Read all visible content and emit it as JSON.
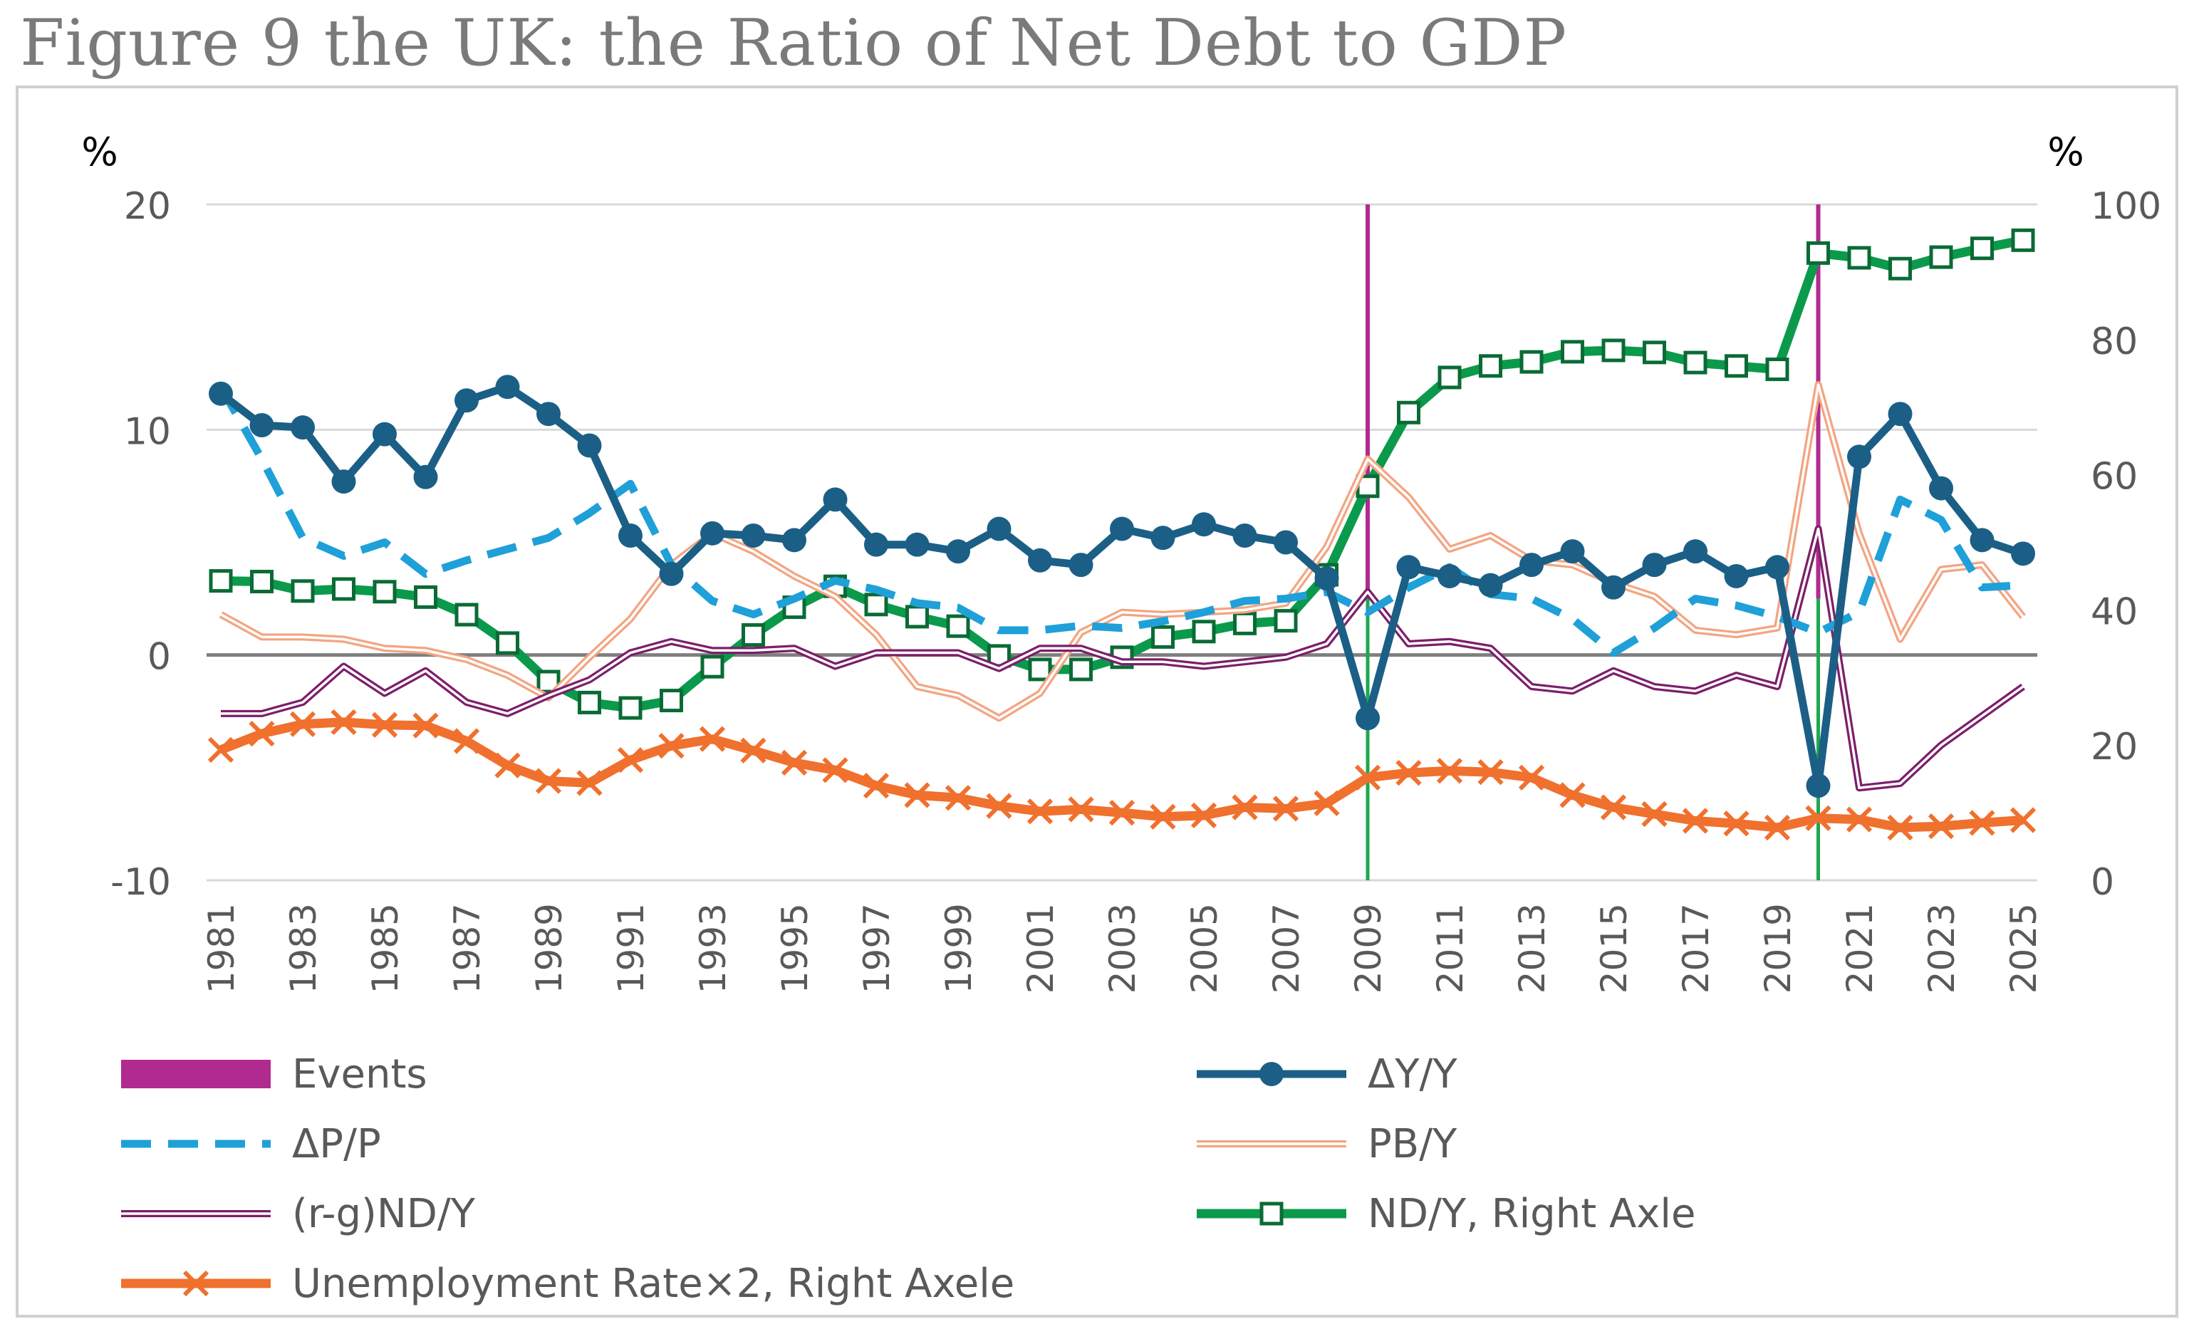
{
  "page": {
    "title": "Figure 9 the UK: the Ratio of Net Debt to GDP"
  },
  "chart_data": {
    "type": "line",
    "title": "Figure 9 the UK: the Ratio of Net Debt to GDP",
    "y_left": {
      "label": "%",
      "range": [
        -10,
        20
      ],
      "ticks": [
        "-10",
        "0",
        "10",
        "20"
      ]
    },
    "y_right": {
      "label": "%",
      "range": [
        0,
        100
      ],
      "ticks": [
        "0",
        "20",
        "40",
        "60",
        "80",
        "100"
      ]
    },
    "x": [
      1981,
      1982,
      1983,
      1984,
      1985,
      1986,
      1987,
      1988,
      1989,
      1990,
      1991,
      1992,
      1993,
      1994,
      1995,
      1996,
      1997,
      1998,
      1999,
      2000,
      2001,
      2002,
      2003,
      2004,
      2005,
      2006,
      2007,
      2008,
      2009,
      2010,
      2011,
      2012,
      2013,
      2014,
      2015,
      2016,
      2017,
      2018,
      2019,
      2020,
      2021,
      2022,
      2023,
      2024,
      2025
    ],
    "x_tick_labels": [
      "1981",
      "1983",
      "1985",
      "1987",
      "1989",
      "1991",
      "1993",
      "1995",
      "1997",
      "1999",
      "2001",
      "2003",
      "2005",
      "2007",
      "2009",
      "2011",
      "2013",
      "2015",
      "2017",
      "2019",
      "2021",
      "2023",
      "2025"
    ],
    "events": {
      "name": "Events",
      "years": [
        2009,
        2020
      ],
      "color": "#b02a8f"
    },
    "zero_line_color": "#7f7f7f",
    "series": [
      {
        "name": "ΔY/Y",
        "axis": "left",
        "color": "#1b5f86",
        "style": "solid-circle",
        "values": [
          11.6,
          10.2,
          10.1,
          7.7,
          9.8,
          7.9,
          11.3,
          11.9,
          10.7,
          9.3,
          5.3,
          3.6,
          5.4,
          5.3,
          5.1,
          6.9,
          4.9,
          4.9,
          4.6,
          5.6,
          4.2,
          4.0,
          5.6,
          5.2,
          5.8,
          5.3,
          5.0,
          3.4,
          -2.8,
          3.9,
          3.5,
          3.1,
          4.0,
          4.6,
          3.0,
          4.0,
          4.6,
          3.5,
          3.9,
          -5.8,
          8.8,
          10.7,
          7.4,
          5.1,
          4.5
        ]
      },
      {
        "name": "ΔP/P",
        "axis": "left",
        "color": "#1fa0d8",
        "style": "dash",
        "values": [
          11.9,
          8.7,
          5.2,
          4.4,
          5.0,
          3.6,
          4.2,
          4.7,
          5.2,
          6.3,
          7.6,
          4.0,
          2.4,
          1.8,
          2.5,
          3.3,
          2.9,
          2.3,
          2.1,
          1.1,
          1.1,
          1.3,
          1.2,
          1.5,
          1.9,
          2.4,
          2.5,
          2.8,
          1.9,
          3.0,
          3.9,
          2.7,
          2.5,
          1.6,
          0.1,
          1.2,
          2.5,
          2.2,
          1.7,
          1.0,
          1.9,
          6.9,
          6.0,
          3.0,
          3.1
        ]
      },
      {
        "name": "PB/Y",
        "axis": "left",
        "color": "#f3a582",
        "style": "double",
        "values": [
          1.8,
          0.8,
          0.8,
          0.7,
          0.3,
          0.2,
          -0.2,
          -0.9,
          -1.9,
          -0.1,
          1.6,
          4.0,
          5.4,
          4.6,
          3.5,
          2.6,
          0.9,
          -1.4,
          -1.8,
          -2.8,
          -1.7,
          1.0,
          1.9,
          1.8,
          1.9,
          2.0,
          2.3,
          4.8,
          8.7,
          7.0,
          4.7,
          5.3,
          4.2,
          4.0,
          3.2,
          2.6,
          1.1,
          0.9,
          1.2,
          12.0,
          5.4,
          0.7,
          3.8,
          4.0,
          1.7
        ]
      },
      {
        "name": "(r-g)ND/Y",
        "axis": "left",
        "color": "#7b1f6a",
        "style": "double",
        "values": [
          -2.6,
          -2.6,
          -2.1,
          -0.5,
          -1.7,
          -0.7,
          -2.1,
          -2.6,
          -1.8,
          -1.1,
          0.1,
          0.6,
          0.2,
          0.2,
          0.3,
          -0.5,
          0.1,
          0.1,
          0.1,
          -0.6,
          0.3,
          0.3,
          -0.3,
          -0.3,
          -0.5,
          -0.3,
          -0.1,
          0.5,
          2.8,
          0.5,
          0.6,
          0.3,
          -1.4,
          -1.6,
          -0.7,
          -1.4,
          -1.6,
          -0.9,
          -1.4,
          5.6,
          -5.9,
          -5.7,
          -4.0,
          -2.7,
          -1.4
        ]
      },
      {
        "name": "ND/Y, Right Axle",
        "axis": "right",
        "color": "#0b9a4b",
        "style": "square",
        "values": [
          44.3,
          44.2,
          42.8,
          43.1,
          42.7,
          41.9,
          39.3,
          35.1,
          29.4,
          26.3,
          25.5,
          26.6,
          31.6,
          36.3,
          40.4,
          43.5,
          40.8,
          39.0,
          37.6,
          33.2,
          31.2,
          31.2,
          33.0,
          36.0,
          36.8,
          38.0,
          38.4,
          45.2,
          58.3,
          69.2,
          74.4,
          76.1,
          76.7,
          78.2,
          78.4,
          78.1,
          76.6,
          76.1,
          75.6,
          92.8,
          92.1,
          90.5,
          92.2,
          93.5,
          94.7
        ]
      },
      {
        "name": "Unemployment Rate×2, Right Axele",
        "axis": "right",
        "color": "#f0702e",
        "style": "cross",
        "values": [
          19.3,
          21.7,
          23.1,
          23.4,
          23.0,
          22.9,
          20.6,
          17.0,
          14.7,
          14.4,
          17.8,
          19.9,
          20.9,
          19.2,
          17.4,
          16.3,
          14.0,
          12.6,
          12.2,
          11.0,
          10.2,
          10.5,
          10.0,
          9.4,
          9.6,
          10.8,
          10.6,
          11.4,
          15.2,
          15.9,
          16.2,
          16.0,
          15.2,
          12.6,
          10.8,
          9.8,
          8.8,
          8.4,
          7.8,
          9.2,
          9.0,
          7.8,
          8.0,
          8.5,
          8.9
        ]
      }
    ],
    "legend": {
      "placement": "bottom",
      "items": [
        "Events",
        "ΔY/Y",
        "ΔP/P",
        "PB/Y",
        "(r-g)ND/Y",
        "ND/Y, Right Axle",
        "Unemployment Rate×2, Right Axele"
      ]
    }
  }
}
